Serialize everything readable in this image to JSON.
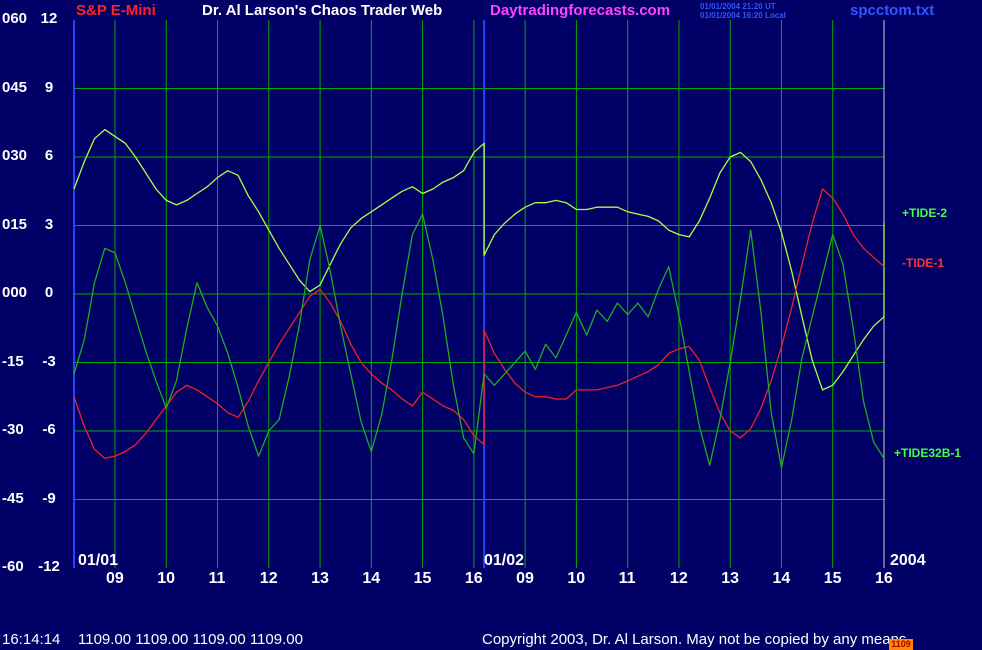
{
  "header": {
    "title": "S&P E-Mini",
    "subtitle": "Dr. Al Larson's Chaos Trader Web",
    "site": "Daytradingforecasts.com",
    "ut_time": "01/01/2004 21:20 UT",
    "local_time": "01/01/2004 16:20 Local",
    "file": "spcctom.txt"
  },
  "footer": {
    "time": "16:14:14",
    "prices": "1109.00 1109.00 1109.00 1109.00",
    "copyright": "Copyright 2003, Dr. Al Larson. May not be copied by any means.",
    "badge": "1109"
  },
  "colors": {
    "background": "#000066",
    "grid": "#00aa00",
    "divider": "#2244ff",
    "tide2": "#aaff44",
    "tide1": "#ee2222",
    "tide32b1": "#22aa22",
    "title": "#ff2222",
    "subtitle": "#ffffff",
    "site": "#ff44ff",
    "file": "#3355ff"
  },
  "chart_data": {
    "type": "line",
    "left_axis_ticks": [
      "060",
      "045",
      "030",
      "015",
      "000",
      "-15",
      "-30",
      "-45",
      "-60"
    ],
    "right_axis_ticks": [
      "12",
      "9",
      "6",
      "3",
      "0",
      "-3",
      "-6",
      "-9",
      "-12"
    ],
    "ylim": [
      -12,
      12
    ],
    "x_tick_labels": [
      "09",
      "10",
      "11",
      "12",
      "13",
      "14",
      "15",
      "16",
      "09",
      "10",
      "11",
      "12",
      "13",
      "14",
      "15",
      "16"
    ],
    "date_labels": [
      "01/01",
      "01/02",
      "2004"
    ],
    "xlim": [
      8.2,
      24.0
    ],
    "series": [
      {
        "name": "+TIDE-2",
        "color": "#aaff44",
        "points": [
          [
            8.2,
            4.6
          ],
          [
            8.4,
            5.8
          ],
          [
            8.6,
            6.8
          ],
          [
            8.8,
            7.2
          ],
          [
            9.0,
            6.9
          ],
          [
            9.2,
            6.6
          ],
          [
            9.4,
            6.0
          ],
          [
            9.6,
            5.3
          ],
          [
            9.8,
            4.6
          ],
          [
            10.0,
            4.1
          ],
          [
            10.2,
            3.9
          ],
          [
            10.4,
            4.1
          ],
          [
            10.6,
            4.4
          ],
          [
            10.8,
            4.7
          ],
          [
            11.0,
            5.1
          ],
          [
            11.2,
            5.4
          ],
          [
            11.4,
            5.2
          ],
          [
            11.6,
            4.3
          ],
          [
            11.8,
            3.6
          ],
          [
            12.0,
            2.8
          ],
          [
            12.2,
            2.0
          ],
          [
            12.4,
            1.3
          ],
          [
            12.6,
            0.6
          ],
          [
            12.8,
            0.1
          ],
          [
            13.0,
            0.4
          ],
          [
            13.2,
            1.3
          ],
          [
            13.4,
            2.2
          ],
          [
            13.6,
            2.9
          ],
          [
            13.8,
            3.3
          ],
          [
            14.0,
            3.6
          ],
          [
            14.2,
            3.9
          ],
          [
            14.4,
            4.2
          ],
          [
            14.6,
            4.5
          ],
          [
            14.8,
            4.7
          ],
          [
            15.0,
            4.4
          ],
          [
            15.2,
            4.6
          ],
          [
            15.4,
            4.9
          ],
          [
            15.6,
            5.1
          ],
          [
            15.8,
            5.4
          ],
          [
            16.0,
            6.2
          ],
          [
            16.2,
            6.6
          ],
          [
            16.2,
            1.7
          ],
          [
            16.4,
            2.6
          ],
          [
            16.6,
            3.1
          ],
          [
            16.8,
            3.5
          ],
          [
            17.0,
            3.8
          ],
          [
            17.2,
            4.0
          ],
          [
            17.4,
            4.0
          ],
          [
            17.6,
            4.1
          ],
          [
            17.8,
            4.0
          ],
          [
            18.0,
            3.7
          ],
          [
            18.2,
            3.7
          ],
          [
            18.4,
            3.8
          ],
          [
            18.6,
            3.8
          ],
          [
            18.8,
            3.8
          ],
          [
            19.0,
            3.6
          ],
          [
            19.2,
            3.5
          ],
          [
            19.4,
            3.4
          ],
          [
            19.6,
            3.2
          ],
          [
            19.8,
            2.8
          ],
          [
            20.0,
            2.6
          ],
          [
            20.2,
            2.5
          ],
          [
            20.4,
            3.2
          ],
          [
            20.6,
            4.2
          ],
          [
            20.8,
            5.3
          ],
          [
            21.0,
            6.0
          ],
          [
            21.2,
            6.2
          ],
          [
            21.4,
            5.8
          ],
          [
            21.6,
            5.0
          ],
          [
            21.8,
            4.0
          ],
          [
            22.0,
            2.7
          ],
          [
            22.2,
            1.0
          ],
          [
            22.4,
            -1.0
          ],
          [
            22.6,
            -2.9
          ],
          [
            22.8,
            -4.2
          ],
          [
            23.0,
            -4.0
          ],
          [
            23.2,
            -3.4
          ],
          [
            23.4,
            -2.7
          ],
          [
            23.6,
            -2.0
          ],
          [
            23.8,
            -1.4
          ],
          [
            24.0,
            -1.0
          ],
          [
            24.0,
            3.1
          ]
        ]
      },
      {
        "name": "-TIDE-1",
        "color": "#ee2222",
        "points": [
          [
            8.2,
            -4.5
          ],
          [
            8.4,
            -5.8
          ],
          [
            8.6,
            -6.8
          ],
          [
            8.8,
            -7.2
          ],
          [
            9.0,
            -7.1
          ],
          [
            9.2,
            -6.9
          ],
          [
            9.4,
            -6.6
          ],
          [
            9.6,
            -6.1
          ],
          [
            9.8,
            -5.5
          ],
          [
            10.0,
            -4.9
          ],
          [
            10.2,
            -4.3
          ],
          [
            10.4,
            -4.0
          ],
          [
            10.6,
            -4.2
          ],
          [
            10.8,
            -4.5
          ],
          [
            11.0,
            -4.8
          ],
          [
            11.2,
            -5.2
          ],
          [
            11.4,
            -5.4
          ],
          [
            11.6,
            -4.7
          ],
          [
            11.8,
            -3.8
          ],
          [
            12.0,
            -3.0
          ],
          [
            12.2,
            -2.2
          ],
          [
            12.4,
            -1.5
          ],
          [
            12.6,
            -0.8
          ],
          [
            12.8,
            -0.1
          ],
          [
            13.0,
            0.2
          ],
          [
            13.2,
            -0.4
          ],
          [
            13.4,
            -1.2
          ],
          [
            13.6,
            -2.2
          ],
          [
            13.8,
            -3.0
          ],
          [
            14.0,
            -3.5
          ],
          [
            14.2,
            -3.9
          ],
          [
            14.4,
            -4.2
          ],
          [
            14.6,
            -4.6
          ],
          [
            14.8,
            -4.9
          ],
          [
            15.0,
            -4.3
          ],
          [
            15.2,
            -4.6
          ],
          [
            15.4,
            -4.9
          ],
          [
            15.6,
            -5.1
          ],
          [
            15.8,
            -5.5
          ],
          [
            16.0,
            -6.2
          ],
          [
            16.2,
            -6.6
          ],
          [
            16.2,
            -1.6
          ],
          [
            16.4,
            -2.6
          ],
          [
            16.6,
            -3.3
          ],
          [
            16.8,
            -3.9
          ],
          [
            17.0,
            -4.3
          ],
          [
            17.2,
            -4.5
          ],
          [
            17.4,
            -4.5
          ],
          [
            17.6,
            -4.6
          ],
          [
            17.8,
            -4.6
          ],
          [
            18.0,
            -4.2
          ],
          [
            18.2,
            -4.2
          ],
          [
            18.4,
            -4.2
          ],
          [
            18.6,
            -4.1
          ],
          [
            18.8,
            -4.0
          ],
          [
            19.0,
            -3.8
          ],
          [
            19.2,
            -3.6
          ],
          [
            19.4,
            -3.4
          ],
          [
            19.6,
            -3.1
          ],
          [
            19.8,
            -2.6
          ],
          [
            20.0,
            -2.4
          ],
          [
            20.2,
            -2.3
          ],
          [
            20.4,
            -2.9
          ],
          [
            20.6,
            -4.1
          ],
          [
            20.8,
            -5.2
          ],
          [
            21.0,
            -6.0
          ],
          [
            21.2,
            -6.3
          ],
          [
            21.4,
            -5.9
          ],
          [
            21.6,
            -5.0
          ],
          [
            21.8,
            -3.8
          ],
          [
            22.0,
            -2.3
          ],
          [
            22.2,
            -0.6
          ],
          [
            22.4,
            1.3
          ],
          [
            22.6,
            3.1
          ],
          [
            22.8,
            4.6
          ],
          [
            23.0,
            4.2
          ],
          [
            23.2,
            3.5
          ],
          [
            23.4,
            2.6
          ],
          [
            23.6,
            2.0
          ],
          [
            23.8,
            1.6
          ],
          [
            24.0,
            1.2
          ]
        ]
      },
      {
        "name": "+TIDE32B-1",
        "color": "#22aa22",
        "points": [
          [
            8.2,
            -3.5
          ],
          [
            8.4,
            -2.0
          ],
          [
            8.6,
            0.5
          ],
          [
            8.8,
            2.0
          ],
          [
            9.0,
            1.8
          ],
          [
            9.2,
            0.5
          ],
          [
            9.4,
            -1.0
          ],
          [
            9.6,
            -2.5
          ],
          [
            9.8,
            -3.8
          ],
          [
            10.0,
            -5.0
          ],
          [
            10.2,
            -3.8
          ],
          [
            10.4,
            -1.5
          ],
          [
            10.6,
            0.5
          ],
          [
            10.8,
            -0.6
          ],
          [
            11.0,
            -1.4
          ],
          [
            11.2,
            -2.6
          ],
          [
            11.4,
            -4.1
          ],
          [
            11.6,
            -5.8
          ],
          [
            11.8,
            -7.1
          ],
          [
            12.0,
            -6.0
          ],
          [
            12.2,
            -5.5
          ],
          [
            12.4,
            -3.6
          ],
          [
            12.6,
            -1.3
          ],
          [
            12.8,
            1.5
          ],
          [
            13.0,
            3.0
          ],
          [
            13.2,
            1.0
          ],
          [
            13.4,
            -1.4
          ],
          [
            13.6,
            -3.5
          ],
          [
            13.8,
            -5.6
          ],
          [
            14.0,
            -6.9
          ],
          [
            14.2,
            -5.3
          ],
          [
            14.4,
            -2.9
          ],
          [
            14.6,
            0.0
          ],
          [
            14.8,
            2.6
          ],
          [
            15.0,
            3.5
          ],
          [
            15.2,
            1.5
          ],
          [
            15.4,
            -1.0
          ],
          [
            15.6,
            -4.0
          ],
          [
            15.8,
            -6.3
          ],
          [
            16.0,
            -7.0
          ],
          [
            16.2,
            -3.5
          ],
          [
            16.4,
            -4.0
          ],
          [
            16.6,
            -3.5
          ],
          [
            16.8,
            -3.0
          ],
          [
            17.0,
            -2.5
          ],
          [
            17.2,
            -3.3
          ],
          [
            17.4,
            -2.2
          ],
          [
            17.6,
            -2.8
          ],
          [
            17.8,
            -1.8
          ],
          [
            18.0,
            -0.8
          ],
          [
            18.2,
            -1.8
          ],
          [
            18.4,
            -0.7
          ],
          [
            18.6,
            -1.2
          ],
          [
            18.8,
            -0.4
          ],
          [
            19.0,
            -0.9
          ],
          [
            19.2,
            -0.4
          ],
          [
            19.4,
            -1.0
          ],
          [
            19.6,
            0.2
          ],
          [
            19.8,
            1.2
          ],
          [
            20.0,
            -0.9
          ],
          [
            20.2,
            -3.4
          ],
          [
            20.4,
            -5.8
          ],
          [
            20.6,
            -7.5
          ],
          [
            20.8,
            -5.5
          ],
          [
            21.0,
            -3.0
          ],
          [
            21.2,
            -0.2
          ],
          [
            21.4,
            2.8
          ],
          [
            21.6,
            -0.8
          ],
          [
            21.8,
            -5.2
          ],
          [
            22.0,
            -7.6
          ],
          [
            22.2,
            -5.5
          ],
          [
            22.4,
            -2.8
          ],
          [
            22.6,
            -1.0
          ],
          [
            22.8,
            0.8
          ],
          [
            23.0,
            2.6
          ],
          [
            23.2,
            1.3
          ],
          [
            23.4,
            -1.5
          ],
          [
            23.6,
            -4.7
          ],
          [
            23.8,
            -6.5
          ],
          [
            24.0,
            -7.2
          ]
        ]
      }
    ],
    "legend_placement": "right",
    "grid": true
  }
}
